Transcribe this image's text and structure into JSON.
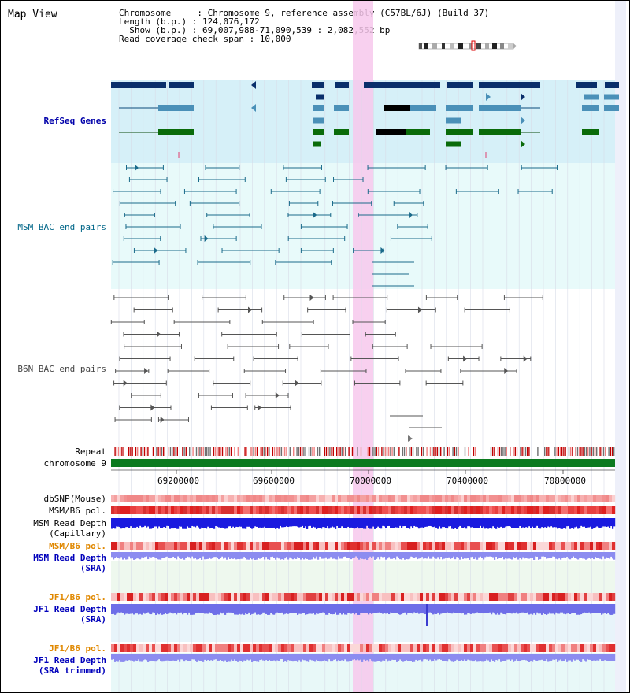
{
  "title": "Map View",
  "info": {
    "line1": "Chromosome     : Chromosome 9, reference assembly (C57BL/6J) (Build 37)",
    "line2": "Length (b.p.) : 124,076,172",
    "line3": "  Show (b.p.) : 69,007,988-71,090,539 : 2,082,552 bp",
    "line4": "Read coverage check span : 10,000"
  },
  "tracks": {
    "refseq": "RefSeq Genes",
    "msm_bac": "MSM BAC end pairs",
    "b6n_bac": "B6N BAC end pairs",
    "repeat": "Repeat",
    "chromosome": "chromosome 9",
    "dbsnp": "dbSNP(Mouse)",
    "msm_b6_pol_1": "MSM/B6 pol.",
    "msm_read_depth_cap_1": "MSM Read Depth",
    "msm_read_depth_cap_2": "(Capillary)",
    "msm_b6_pol_2": "MSM/B6 pol.",
    "msm_read_depth_sra_1": "MSM Read Depth",
    "msm_read_depth_sra_2": "(SRA)",
    "jf1_b6_pol_1": "JF1/B6 pol.",
    "jf1_read_depth_1": "JF1 Read Depth",
    "jf1_read_depth_2": "(SRA)",
    "jf1_b6_pol_2": "JF1/B6 pol.",
    "jf1_read_depth_trim_1": "JF1 Read Depth",
    "jf1_read_depth_trim_2": "(SRA trimmed)"
  },
  "axis": {
    "ticks": [
      "69200000",
      "69600000",
      "70000000",
      "70400000",
      "70800000"
    ]
  },
  "colors": {
    "refseq_label": "#0000aa",
    "msm_bac_label": "#006688",
    "b6n_label": "#444444",
    "orange_label": "#e08800",
    "blue_label": "#0000bb",
    "highlight": "#f7c8ec"
  }
}
